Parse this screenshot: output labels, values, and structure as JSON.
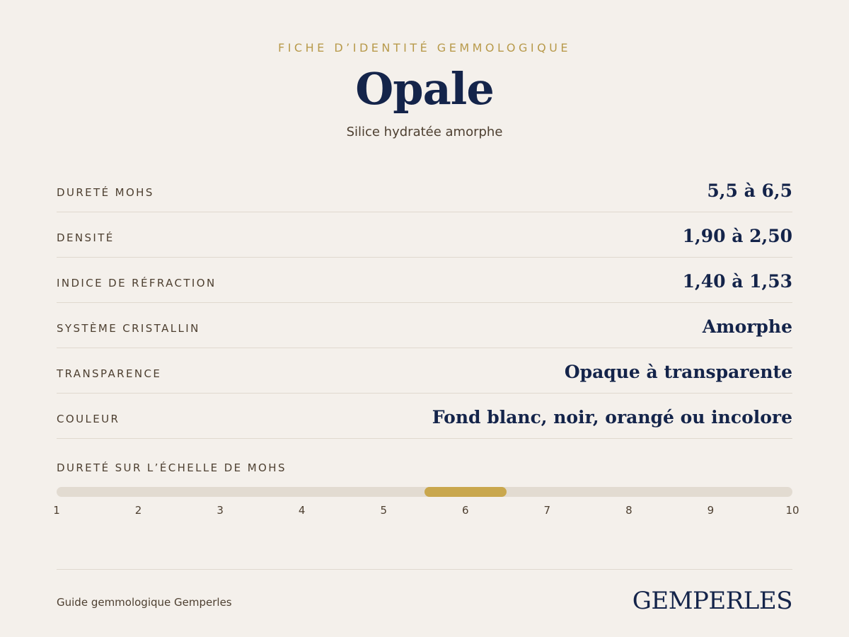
{
  "header": {
    "eyebrow": "FICHE D’IDENTITÉ GEMMOLOGIQUE",
    "title": "Opale",
    "subtitle": "Silice hydratée amorphe"
  },
  "properties": [
    {
      "label": "DURETÉ MOHS",
      "value": "5,5 à 6,5"
    },
    {
      "label": "DENSITÉ",
      "value": "1,90 à 2,50"
    },
    {
      "label": "INDICE DE RÉFRACTION",
      "value": "1,40 à 1,53"
    },
    {
      "label": "SYSTÈME CRISTALLIN",
      "value": "Amorphe"
    },
    {
      "label": "TRANSPARENCE",
      "value": "Opaque à transparente"
    },
    {
      "label": "COULEUR",
      "value": "Fond blanc, noir, orangé ou incolore"
    }
  ],
  "mohs_scale": {
    "label": "DURETÉ SUR L’ÉCHELLE DE MOHS",
    "min": 1,
    "max": 10,
    "range_low": 5.5,
    "range_high": 6.5,
    "ticks": [
      "1",
      "2",
      "3",
      "4",
      "5",
      "6",
      "7",
      "8",
      "9",
      "10"
    ]
  },
  "footer": {
    "caption": "Guide gemmologique Gemperles",
    "brand": "GEMPERLES"
  },
  "colors": {
    "background": "#f4f0eb",
    "navy": "#14244a",
    "gold": "#c9a74d",
    "eyebrow_gold": "#b89a4b",
    "brown_text": "#4d3f30",
    "track": "#e2dbd1"
  }
}
